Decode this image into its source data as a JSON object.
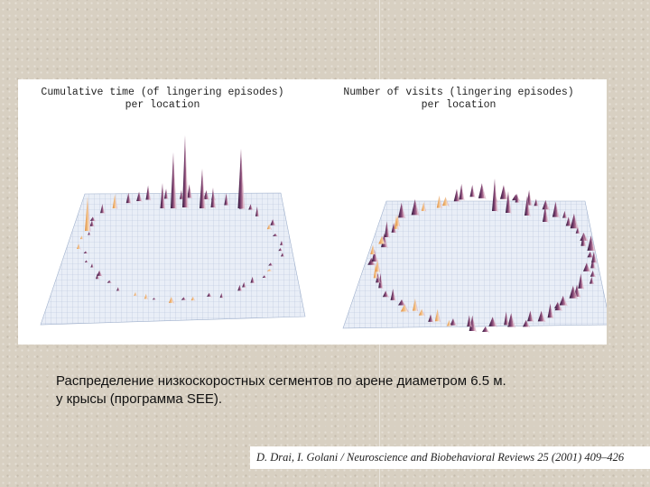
{
  "figure": {
    "left_title": "Cumulative time (of lingering episodes)\nper location",
    "right_title": "Number of visits (lingering episodes)\nper location",
    "colors": {
      "grid": "#b8c4da",
      "plane": "#e8edf6",
      "peak_dark": "#2a1436",
      "peak_mid": "#8a4a7a",
      "peak_warm": "#e0964a"
    }
  },
  "caption": {
    "line1": "Распределение низкоскоростных сегментов по арене диаметром 6.5 м.",
    "line2": "у крысы (программа SEE)."
  },
  "citation": "D. Drai, I. Golani / Neuroscience and Biobehavioral Reviews 25 (2001) 409–426"
}
